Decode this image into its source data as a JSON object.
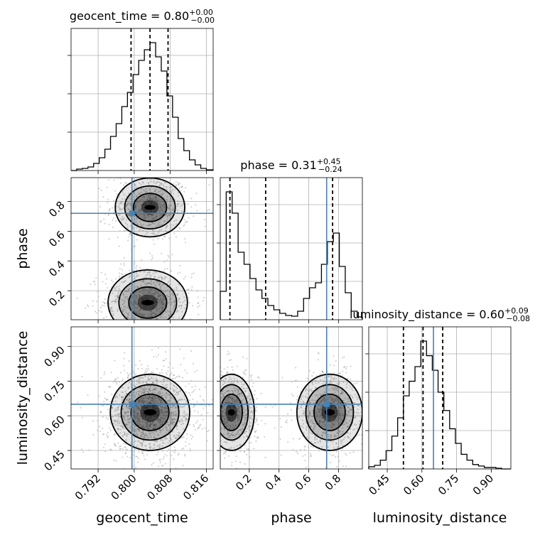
{
  "chart_data": {
    "type": "corner",
    "parameters": [
      "geocent_time",
      "phase",
      "luminosity_distance"
    ],
    "truths": {
      "geocent_time": 0.7995,
      "phase": 0.72,
      "luminosity_distance": 0.65
    },
    "colors": {
      "truth": "#4682b4",
      "hist": "#000000",
      "grid": "#b0b0b0",
      "points": "#808080"
    },
    "axes": {
      "geocent_time": {
        "range": [
          0.786,
          0.8175
        ],
        "ticks": [
          0.792,
          0.8,
          0.808,
          0.816
        ],
        "tick_labels": [
          "0.792",
          "0.800",
          "0.808",
          "0.816"
        ],
        "label": "geocent_time"
      },
      "phase": {
        "range": [
          0.005,
          0.96
        ],
        "ticks": [
          0.2,
          0.4,
          0.6,
          0.8
        ],
        "tick_labels": [
          "0.2",
          "0.4",
          "0.6",
          "0.8"
        ],
        "label": "phase"
      },
      "luminosity_distance": {
        "range": [
          0.37,
          0.985
        ],
        "ticks": [
          0.45,
          0.6,
          0.75,
          0.9
        ],
        "tick_labels": [
          "0.45",
          "0.60",
          "0.75",
          "0.90"
        ],
        "label": "luminosity_distance"
      }
    },
    "marginals": [
      {
        "param": "geocent_time",
        "title_prefix": "geocent_time = 0.80",
        "title_sup": "+0.00",
        "title_sub": "−0.00",
        "quantiles": [
          0.7993,
          0.8035,
          0.8075
        ],
        "bin_edges": [
          0.786,
          0.78725,
          0.7885,
          0.78975,
          0.791,
          0.79225,
          0.7935,
          0.79475,
          0.796,
          0.79725,
          0.7985,
          0.79975,
          0.801,
          0.80225,
          0.8035,
          0.80475,
          0.806,
          0.80725,
          0.8085,
          0.80975,
          0.811,
          0.81225,
          0.8135,
          0.81475,
          0.816,
          0.8175
        ],
        "counts": [
          0,
          2,
          3,
          5,
          10,
          18,
          30,
          48,
          66,
          90,
          110,
          135,
          155,
          170,
          180,
          160,
          140,
          105,
          75,
          45,
          28,
          15,
          8,
          3,
          1
        ]
      },
      {
        "param": "phase",
        "title_prefix": "phase = 0.31",
        "title_sup": "+0.45",
        "title_sub": "−0.24",
        "quantiles": [
          0.07,
          0.31,
          0.76
        ],
        "bin_edges": [
          0.005,
          0.045,
          0.085,
          0.125,
          0.165,
          0.205,
          0.245,
          0.285,
          0.325,
          0.365,
          0.405,
          0.445,
          0.485,
          0.525,
          0.565,
          0.605,
          0.645,
          0.685,
          0.725,
          0.765,
          0.805,
          0.845,
          0.885,
          0.925,
          0.96
        ],
        "counts": [
          40,
          180,
          150,
          95,
          78,
          58,
          42,
          30,
          20,
          14,
          9,
          6,
          5,
          12,
          30,
          45,
          52,
          78,
          110,
          122,
          75,
          38,
          12,
          4
        ]
      },
      {
        "param": "luminosity_distance",
        "title_prefix": "luminosity_distance = 0.60",
        "title_sup": "+0.09",
        "title_sub": "−0.08",
        "quantiles": [
          0.52,
          0.605,
          0.69
        ],
        "bin_edges": [
          0.37,
          0.395,
          0.42,
          0.445,
          0.47,
          0.495,
          0.52,
          0.545,
          0.57,
          0.595,
          0.62,
          0.645,
          0.67,
          0.695,
          0.72,
          0.745,
          0.77,
          0.795,
          0.82,
          0.845,
          0.87,
          0.895,
          0.92,
          0.945,
          0.985
        ],
        "counts": [
          3,
          5,
          12,
          25,
          45,
          70,
          100,
          120,
          140,
          175,
          155,
          135,
          105,
          80,
          55,
          35,
          20,
          12,
          6,
          4,
          2,
          2,
          1,
          0
        ]
      }
    ],
    "joint": [
      {
        "x": "geocent_time",
        "y": "phase",
        "blobs": [
          {
            "cx": 0.8035,
            "cy": 0.76,
            "sx": 0.0035,
            "sy": 0.09,
            "n": 650
          },
          {
            "cx": 0.803,
            "cy": 0.12,
            "sx": 0.004,
            "sy": 0.1,
            "n": 850
          }
        ]
      },
      {
        "x": "geocent_time",
        "y": "luminosity_distance",
        "blobs": [
          {
            "cx": 0.8035,
            "cy": 0.615,
            "sx": 0.004,
            "sy": 0.075,
            "n": 1500
          }
        ]
      },
      {
        "x": "phase",
        "y": "luminosity_distance",
        "blobs": [
          {
            "cx": 0.08,
            "cy": 0.615,
            "sx": 0.07,
            "sy": 0.075,
            "n": 750
          },
          {
            "cx": 0.74,
            "cy": 0.615,
            "sx": 0.1,
            "sy": 0.075,
            "n": 750
          }
        ]
      }
    ]
  }
}
